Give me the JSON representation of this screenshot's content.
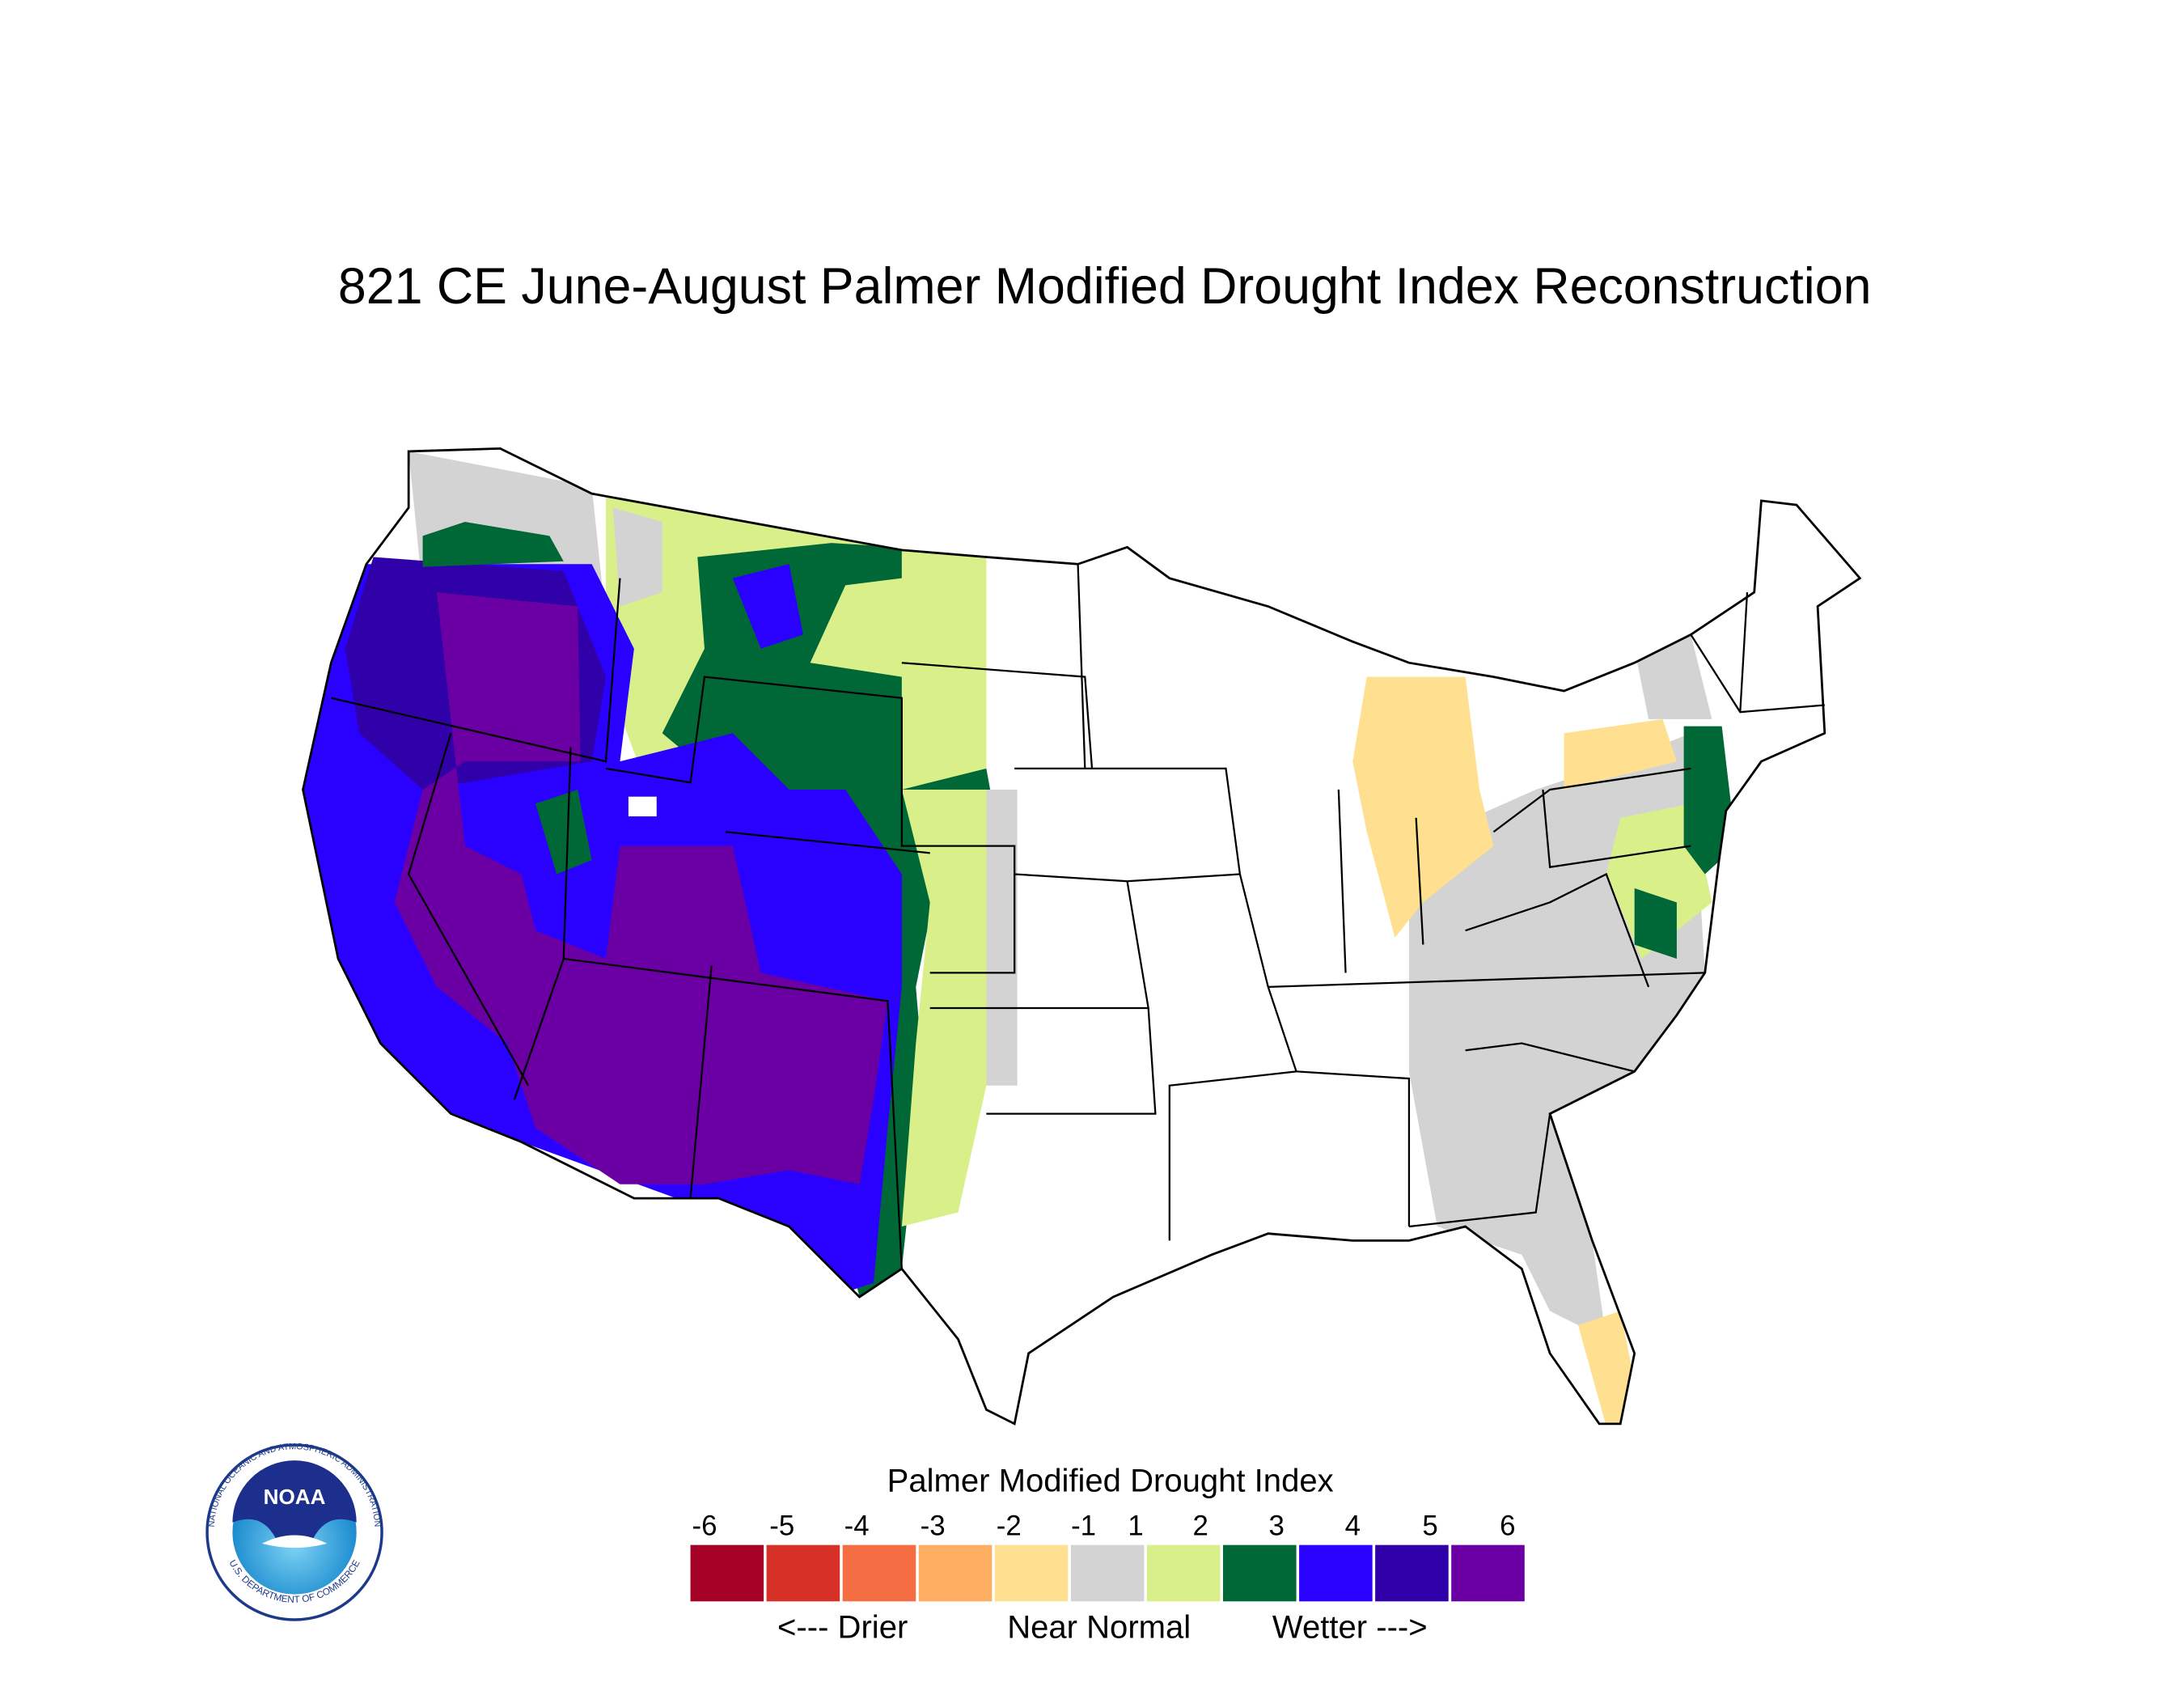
{
  "title": "821 CE  June-August  Palmer Modified Drought Index Reconstruction",
  "legend": {
    "title": "Palmer Modified Drought Index",
    "ticks": [
      "-6",
      "-5",
      "-4",
      "-3",
      "-2",
      "-1",
      "1",
      "2",
      "3",
      "4",
      "5",
      "6"
    ],
    "colors": [
      "#a50026",
      "#d73027",
      "#f46d43",
      "#fdae61",
      "#fee090",
      "#d3d3d3",
      "#d9f08a",
      "#006837",
      "#2a00ff",
      "#3000a8",
      "#6a00a3"
    ],
    "labels": [
      "<--- Drier",
      "Near Normal",
      "Wetter --->"
    ]
  },
  "logo": {
    "name": "NOAA",
    "ring_top": "NATIONAL OCEANIC AND ATMOSPHERIC ADMINISTRATION",
    "ring_bottom": "U.S. DEPARTMENT OF COMMERCE"
  }
}
